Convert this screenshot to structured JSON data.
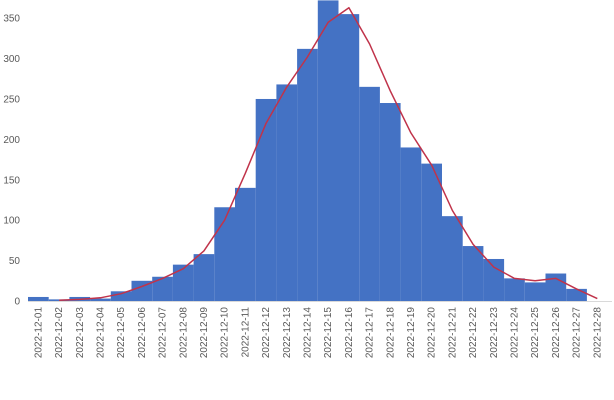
{
  "chart_data": {
    "type": "bar",
    "title": "",
    "xlabel": "",
    "ylabel": "",
    "ylim": [
      0,
      370
    ],
    "yticks": [
      0,
      50,
      100,
      150,
      200,
      250,
      300,
      350
    ],
    "yticks_display": [
      "0",
      "50",
      "100",
      "150",
      "200",
      "250",
      "300",
      "350"
    ],
    "grid": false,
    "legend": "none",
    "categories": [
      "2022-12-01",
      "2022-12-02",
      "2022-12-03",
      "2022-12-04",
      "2022-12-05",
      "2022-12-06",
      "2022-12-07",
      "2022-12-08",
      "2022-12-09",
      "2022-12-10",
      "2022-12-11",
      "2022-12-12",
      "2022-12-13",
      "2022-12-14",
      "2022-12-15",
      "2022-12-16",
      "2022-12-17",
      "2022-12-18",
      "2022-12-19",
      "2022-12-20",
      "2022-12-21",
      "2022-12-22",
      "2022-12-23",
      "2022-12-24",
      "2022-12-25",
      "2022-12-26",
      "2022-12-27",
      "2022-12-28"
    ],
    "series": [
      {
        "type": "bar",
        "color": "#4472c4",
        "values": [
          5,
          2,
          5,
          3,
          12,
          25,
          30,
          45,
          58,
          116,
          140,
          250,
          268,
          312,
          372,
          355,
          265,
          245,
          190,
          170,
          105,
          68,
          52,
          28,
          23,
          34,
          15,
          0
        ]
      },
      {
        "type": "line",
        "color": "#c0334a",
        "values": [
          null,
          1,
          2,
          4,
          9,
          18,
          28,
          40,
          62,
          100,
          158,
          220,
          265,
          302,
          345,
          363,
          318,
          260,
          208,
          168,
          112,
          70,
          42,
          28,
          25,
          28,
          15,
          3
        ]
      }
    ]
  }
}
